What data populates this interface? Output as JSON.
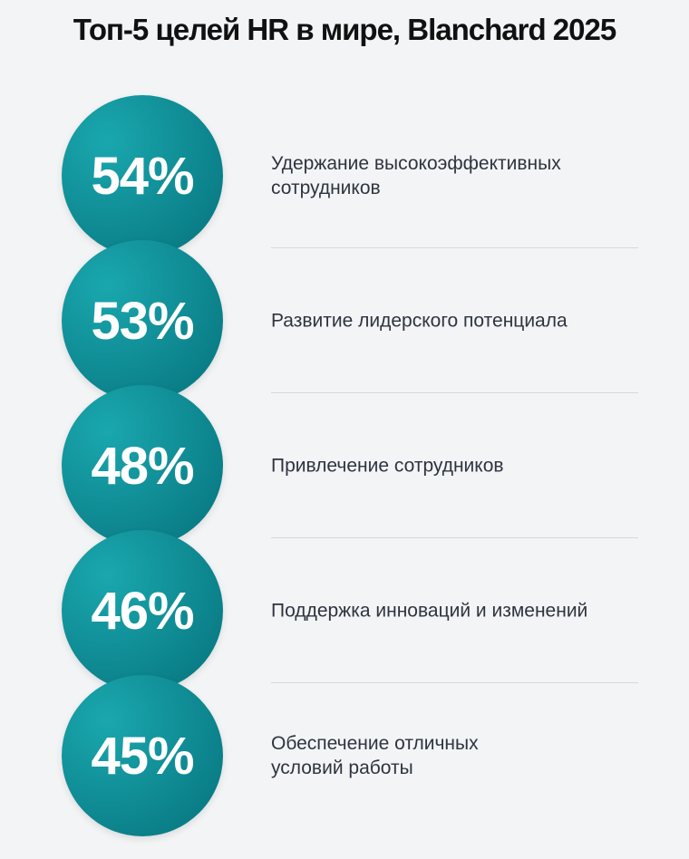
{
  "title": "Топ-5 целей HR в мире, Blanchard 2025",
  "colors": {
    "background": "#f3f4f5",
    "circle_light": "#1aa7ae",
    "circle_dark": "#06727c",
    "text": "#2e3440",
    "divider": "#d5d8dc"
  },
  "chart_data": {
    "type": "bar",
    "title": "Топ-5 целей HR в мире, Blanchard 2025",
    "categories": [
      "Удержание высокоэффективных сотрудников",
      "Развитие лидерского потенциала",
      "Привлечение сотрудников",
      "Поддержка инноваций и изменений",
      "Обеспечение отличных условий работы"
    ],
    "values": [
      54,
      53,
      48,
      46,
      45
    ],
    "value_labels": [
      "54%",
      "53%",
      "48%",
      "46%",
      "45%"
    ],
    "unit": "%",
    "items": [
      {
        "value": 54,
        "value_label": "54%",
        "label_lines": [
          "Удержание высокоэффективных",
          "сотрудников"
        ]
      },
      {
        "value": 53,
        "value_label": "53%",
        "label_lines": [
          "Развитие лидерского потенциала"
        ]
      },
      {
        "value": 48,
        "value_label": "48%",
        "label_lines": [
          "Привлечение сотрудников"
        ]
      },
      {
        "value": 46,
        "value_label": "46%",
        "label_lines": [
          "Поддержка инноваций и изменений"
        ]
      },
      {
        "value": 45,
        "value_label": "45%",
        "label_lines": [
          "Обеспечение отличных",
          "условий работы"
        ]
      }
    ]
  }
}
